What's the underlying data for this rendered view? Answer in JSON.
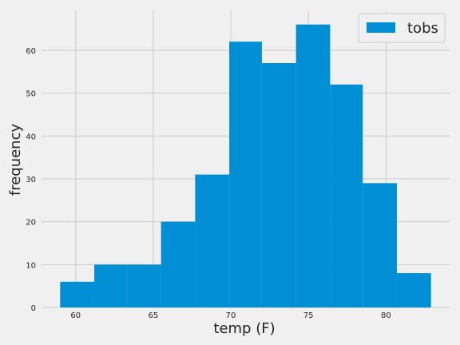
{
  "chart_data": {
    "type": "histogram",
    "xlabel": "temp (F)",
    "ylabel": "frequency",
    "bins": [
      {
        "x0": 59.0,
        "x1": 61.2,
        "count": 6
      },
      {
        "x0": 61.2,
        "x1": 63.3,
        "count": 10
      },
      {
        "x0": 63.3,
        "x1": 65.5,
        "count": 10
      },
      {
        "x0": 65.5,
        "x1": 67.7,
        "count": 20
      },
      {
        "x0": 67.7,
        "x1": 69.9,
        "count": 31
      },
      {
        "x0": 69.9,
        "x1": 72.0,
        "count": 62
      },
      {
        "x0": 72.0,
        "x1": 74.2,
        "count": 57
      },
      {
        "x0": 74.2,
        "x1": 76.4,
        "count": 66
      },
      {
        "x0": 76.4,
        "x1": 78.5,
        "count": 52
      },
      {
        "x0": 78.5,
        "x1": 80.7,
        "count": 29
      },
      {
        "x0": 80.7,
        "x1": 82.9,
        "count": 8
      }
    ],
    "xlim": [
      57.8,
      84.1
    ],
    "ylim": [
      0,
      69.3
    ],
    "xticks": [
      60,
      65,
      70,
      75,
      80
    ],
    "yticks": [
      0,
      10,
      20,
      30,
      40,
      50,
      60
    ],
    "grid": true,
    "legend": {
      "position": "top-right",
      "entries": [
        "tobs"
      ]
    },
    "colors": {
      "bar": "#008fd5",
      "background": "#f0f0f0",
      "grid": "#cbcbcb"
    }
  }
}
